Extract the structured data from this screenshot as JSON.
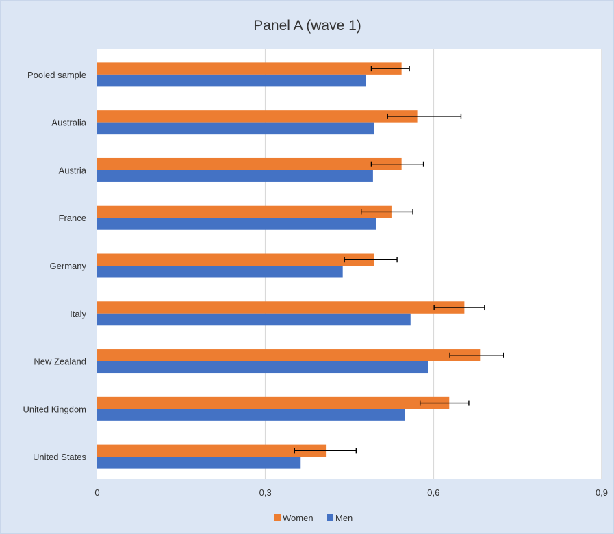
{
  "chart_data": {
    "type": "bar",
    "orientation": "horizontal",
    "title": "Panel A (wave 1)",
    "xlabel": "",
    "ylabel": "",
    "xlim": [
      0,
      0.9
    ],
    "xticks": [
      0,
      0.3,
      0.6,
      0.9
    ],
    "xtick_labels": [
      "0",
      "0,3",
      "0,6",
      "0,9"
    ],
    "grid": "vertical",
    "legend_position": "bottom",
    "categories": [
      "Pooled sample",
      "Australia",
      "Austria",
      "France",
      "Germany",
      "Italy",
      "New Zealand",
      "United Kingdom",
      "United States"
    ],
    "series": [
      {
        "name": "Women",
        "values": [
          0.543,
          0.571,
          0.543,
          0.525,
          0.494,
          0.655,
          0.683,
          0.628,
          0.408
        ],
        "error_low": [
          0.489,
          0.518,
          0.489,
          0.471,
          0.441,
          0.601,
          0.629,
          0.576,
          0.352
        ],
        "error_high": [
          0.557,
          0.649,
          0.582,
          0.563,
          0.535,
          0.691,
          0.725,
          0.663,
          0.462
        ]
      },
      {
        "name": "Men",
        "values": [
          0.479,
          0.494,
          0.492,
          0.497,
          0.438,
          0.559,
          0.591,
          0.549,
          0.363
        ]
      }
    ],
    "colors": {
      "Women": "#ED7D31",
      "Men": "#4472C4"
    },
    "background": "#DCE6F4",
    "plot_background": "#FFFFFF"
  }
}
